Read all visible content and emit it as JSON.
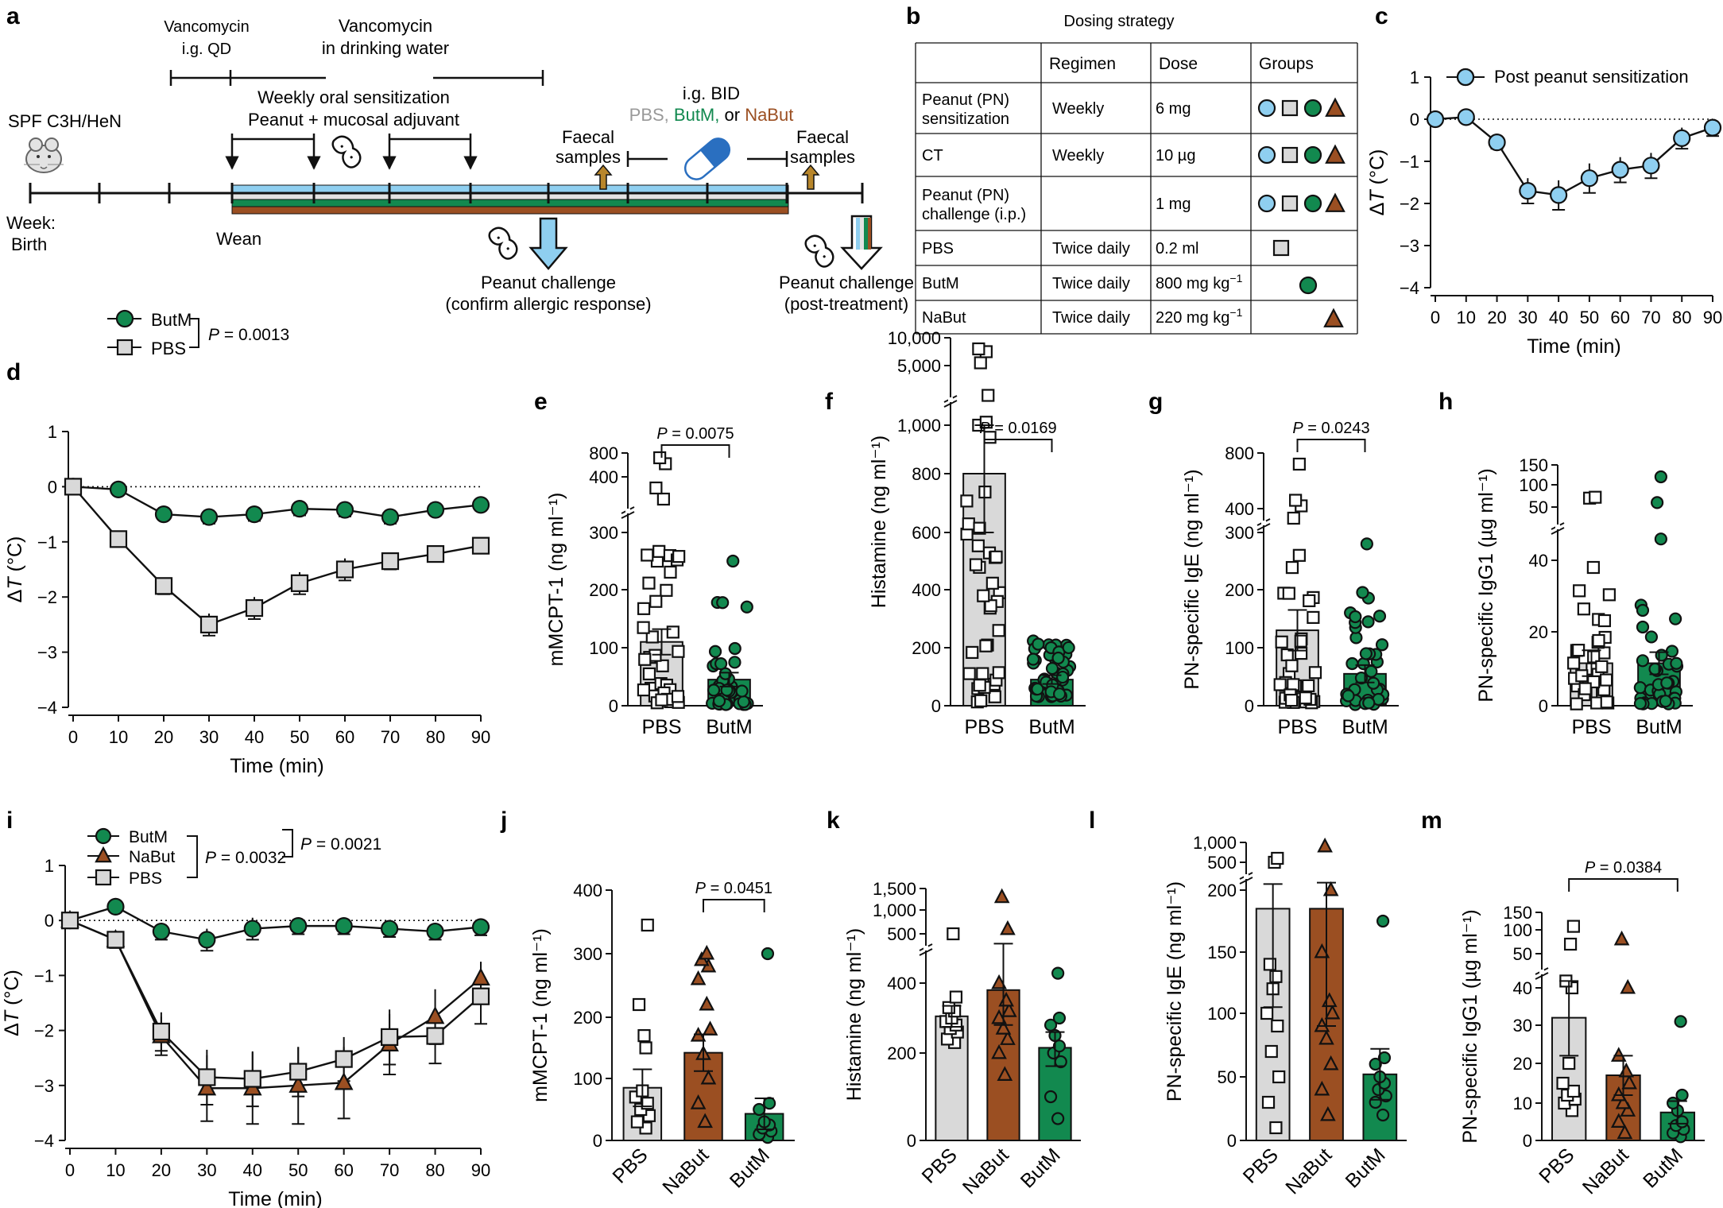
{
  "colors": {
    "pbs": "#d9d9d9",
    "butm": "#12894f",
    "nabut": "#9b4f22",
    "ct": "#8fcff0",
    "capsule": "#2a6fc0",
    "arrow": "#b8862b"
  },
  "panel_letters": [
    "a",
    "b",
    "c",
    "d",
    "e",
    "f",
    "g",
    "h",
    "i",
    "j",
    "k",
    "l",
    "m"
  ],
  "icons": [
    "mouse-icon",
    "peanut-icon",
    "capsule-icon",
    "faecal-arrow-icon",
    "challenge-arrow-icon"
  ],
  "panel_a": {
    "mouse_label": "SPF C3H/HeN",
    "week_label_1": "Week:",
    "week_label_2": "Birth",
    "wean_label": "Wean",
    "vanco_qd_1": "Vancomycin",
    "vanco_qd_2": "i.g. QD",
    "vanco_water_1": "Vancomycin",
    "vanco_water_2": "in drinking water",
    "sens_1": "Weekly oral sensitization",
    "sens_2": "Peanut + mucosal adjuvant",
    "bid_title": "i.g. BID",
    "bid_pbs": "PBS,",
    "bid_butm": "ButM,",
    "bid_or": "or",
    "bid_nabut": "NaBut",
    "faecal1_1": "Faecal",
    "faecal1_2": "samples",
    "faecal2_1": "Faecal",
    "faecal2_2": "samples",
    "challenge1_1": "Peanut challenge",
    "challenge1_2": "(confirm allergic response)",
    "challenge2_1": "Peanut challenge",
    "challenge2_2": "(post-treatment)"
  },
  "panel_b": {
    "title": "Dosing strategy",
    "headers": [
      "",
      "Regimen",
      "Dose",
      "Groups"
    ],
    "rows": [
      {
        "name1": "Peanut (PN)",
        "name2": "sensitization",
        "regimen": "Weekly",
        "dose": "6 mg",
        "groups": [
          "ct",
          "pbs",
          "butm",
          "nabut"
        ]
      },
      {
        "name1": "CT",
        "name2": "",
        "regimen": "Weekly",
        "dose": "10 µg",
        "groups": [
          "ct",
          "pbs",
          "butm",
          "nabut"
        ]
      },
      {
        "name1": "Peanut (PN)",
        "name2": "challenge (i.p.)",
        "regimen": "",
        "dose": "1 mg",
        "groups": [
          "ct",
          "pbs",
          "butm",
          "nabut"
        ]
      },
      {
        "name1": "PBS",
        "name2": "",
        "regimen": "Twice daily",
        "dose": "0.2 ml",
        "groups": [
          "pbs"
        ]
      },
      {
        "name1": "ButM",
        "name2": "",
        "regimen": "Twice daily",
        "dose": "800 mg kg",
        "groups": [
          "butm"
        ]
      },
      {
        "name1": "NaBut",
        "name2": "",
        "regimen": "Twice daily",
        "dose": "220 mg kg",
        "groups": [
          "nabut"
        ]
      }
    ],
    "dose_superscript": "−1"
  },
  "chart_data": [
    {
      "id": "c",
      "type": "line",
      "title": "",
      "xlabel": "Time (min)",
      "ylabel": "ΔT (°C)",
      "ylim": [
        -4,
        1
      ],
      "xlim": [
        0,
        90
      ],
      "xticks": [
        0,
        10,
        20,
        30,
        40,
        50,
        60,
        70,
        80,
        90
      ],
      "yticks": [
        1,
        0,
        -1,
        -2,
        -3,
        -4
      ],
      "yticklabels": [
        "1",
        "0",
        "−1",
        "−2",
        "−3",
        "−4"
      ],
      "series": [
        {
          "name": "Post peanut sensitization",
          "marker": "circle",
          "color": "ct",
          "x": [
            0,
            10,
            20,
            30,
            40,
            50,
            60,
            70,
            80,
            90
          ],
          "y": [
            0,
            0.05,
            -0.55,
            -1.7,
            -1.8,
            -1.4,
            -1.2,
            -1.1,
            -0.45,
            -0.2
          ],
          "err": [
            0,
            0.05,
            0.15,
            0.3,
            0.35,
            0.35,
            0.3,
            0.3,
            0.25,
            0.2
          ]
        }
      ]
    },
    {
      "id": "d",
      "type": "line",
      "xlabel": "Time (min)",
      "ylabel": "ΔT (°C)",
      "ylim": [
        -4,
        1
      ],
      "xlim": [
        0,
        90
      ],
      "xticks": [
        0,
        10,
        20,
        30,
        40,
        50,
        60,
        70,
        80,
        90
      ],
      "yticks": [
        1,
        0,
        -1,
        -2,
        -3,
        -4
      ],
      "yticklabels": [
        "1",
        "0",
        "−1",
        "−2",
        "−3",
        "−4"
      ],
      "p_label": "P",
      "p_value": " = 0.0013",
      "series": [
        {
          "name": "ButM",
          "marker": "circle",
          "color": "butm",
          "x": [
            0,
            10,
            20,
            30,
            40,
            50,
            60,
            70,
            80,
            90
          ],
          "y": [
            0,
            -0.05,
            -0.5,
            -0.55,
            -0.5,
            -0.4,
            -0.42,
            -0.55,
            -0.42,
            -0.33
          ],
          "err": [
            0,
            0.05,
            0.1,
            0.12,
            0.12,
            0.12,
            0.12,
            0.12,
            0.1,
            0.1
          ]
        },
        {
          "name": "PBS",
          "marker": "square",
          "color": "pbs",
          "x": [
            0,
            10,
            20,
            30,
            40,
            50,
            60,
            70,
            80,
            90
          ],
          "y": [
            0,
            -0.95,
            -1.8,
            -2.5,
            -2.2,
            -1.75,
            -1.5,
            -1.35,
            -1.22,
            -1.07
          ],
          "err": [
            0,
            0.1,
            0.15,
            0.2,
            0.2,
            0.2,
            0.2,
            0.15,
            0.12,
            0.1
          ]
        }
      ]
    },
    {
      "id": "i",
      "type": "line",
      "xlabel": "Time (min)",
      "ylabel": "ΔT (°C)",
      "ylim": [
        -4,
        1
      ],
      "xlim": [
        0,
        90
      ],
      "xticks": [
        0,
        10,
        20,
        30,
        40,
        50,
        60,
        70,
        80,
        90
      ],
      "yticks": [
        1,
        0,
        -1,
        -2,
        -3,
        -4
      ],
      "yticklabels": [
        "1",
        "0",
        "−1",
        "−2",
        "−3",
        "−4"
      ],
      "p1_label": "P",
      "p1_value": " = 0.0032",
      "p2_label": "P",
      "p2_value": " = 0.0021",
      "series": [
        {
          "name": "ButM",
          "marker": "circle",
          "color": "butm",
          "x": [
            0,
            10,
            20,
            30,
            40,
            50,
            60,
            70,
            80,
            90
          ],
          "y": [
            0,
            0.25,
            -0.2,
            -0.35,
            -0.15,
            -0.1,
            -0.1,
            -0.15,
            -0.2,
            -0.12
          ],
          "err": [
            0,
            0.05,
            0.15,
            0.2,
            0.2,
            0.15,
            0.15,
            0.15,
            0.15,
            0.15
          ]
        },
        {
          "name": "NaBut",
          "marker": "triangle",
          "color": "nabut",
          "x": [
            0,
            10,
            20,
            30,
            40,
            50,
            60,
            70,
            80,
            90
          ],
          "y": [
            0,
            -0.35,
            -2.1,
            -3.05,
            -3.05,
            -3.0,
            -2.95,
            -2.25,
            -1.75,
            -1.05
          ],
          "err": [
            0,
            0.15,
            0.35,
            0.6,
            0.65,
            0.7,
            0.65,
            0.55,
            0.5,
            0.3
          ]
        },
        {
          "name": "PBS",
          "marker": "square",
          "color": "pbs",
          "x": [
            0,
            10,
            20,
            30,
            40,
            50,
            60,
            70,
            80,
            90
          ],
          "y": [
            0,
            -0.35,
            -2.02,
            -2.85,
            -2.88,
            -2.75,
            -2.52,
            -2.12,
            -2.1,
            -1.38
          ],
          "err": [
            0,
            0.15,
            0.35,
            0.5,
            0.5,
            0.45,
            0.4,
            0.5,
            0.5,
            0.5
          ]
        }
      ]
    },
    {
      "id": "e",
      "type": "bar",
      "ylabel": "mMCPT-1 (ng ml⁻¹)",
      "categories": [
        "PBS",
        "ButM"
      ],
      "values": [
        110,
        45
      ],
      "err": [
        22,
        12
      ],
      "p_label": "P",
      "p_value": " = 0.0075",
      "yticks": [
        "0",
        "100",
        "200",
        "300",
        "400",
        "800"
      ]
    },
    {
      "id": "f",
      "type": "bar",
      "ylabel": "Histamine (ng ml⁻¹)",
      "categories": [
        "PBS",
        "ButM"
      ],
      "values": [
        800,
        90
      ],
      "err": [
        200,
        15
      ],
      "p_label": "P",
      "p_value": " = 0.0169",
      "yticks": [
        "0",
        "200",
        "400",
        "600",
        "800",
        "1,000",
        "5,000",
        "10,000"
      ]
    },
    {
      "id": "g",
      "type": "bar",
      "ylabel": "PN-specific IgE (ng ml⁻¹)",
      "categories": [
        "PBS",
        "ButM"
      ],
      "values": [
        130,
        55
      ],
      "err": [
        35,
        15
      ],
      "p_label": "P",
      "p_value": " = 0.0243",
      "yticks": [
        "0",
        "100",
        "200",
        "300",
        "400",
        "800"
      ]
    },
    {
      "id": "h",
      "type": "bar",
      "ylabel": "PN-specific IgG1 (µg ml⁻¹)",
      "categories": [
        "PBS",
        "ButM"
      ],
      "values": [
        11.5,
        11.5
      ],
      "err": [
        3.5,
        3
      ],
      "yticks": [
        "0",
        "20",
        "40",
        "50",
        "100",
        "150"
      ]
    },
    {
      "id": "j",
      "type": "bar",
      "ylabel": "mMCPT-1 (ng ml⁻¹)",
      "categories": [
        "PBS",
        "NaBut",
        "ButM"
      ],
      "values": [
        85,
        142,
        43
      ],
      "err": [
        30,
        30,
        25
      ],
      "p_label": "P",
      "p_value": " = 0.0451",
      "yticks": [
        "0",
        "100",
        "200",
        "300",
        "400"
      ]
    },
    {
      "id": "k",
      "type": "bar",
      "ylabel": "Histamine (ng ml⁻¹)",
      "categories": [
        "PBS",
        "NaBut",
        "ButM"
      ],
      "values": [
        305,
        380,
        215
      ],
      "err": [
        30,
        100,
        45
      ],
      "yticks": [
        "0",
        "200",
        "400",
        "500",
        "1,000",
        "1,500"
      ]
    },
    {
      "id": "l",
      "type": "bar",
      "ylabel": "PN-specific IgE (ng ml⁻¹)",
      "categories": [
        "PBS",
        "NaBut",
        "ButM"
      ],
      "values": [
        185,
        185,
        52
      ],
      "err": [
        80,
        95,
        20
      ],
      "yticks": [
        "0",
        "50",
        "100",
        "150",
        "200",
        "500",
        "1,000"
      ]
    },
    {
      "id": "m",
      "type": "bar",
      "ylabel": "PN-specific IgG1 (µg ml⁻¹)",
      "categories": [
        "PBS",
        "NaBut",
        "ButM"
      ],
      "values": [
        32,
        17,
        7.5
      ],
      "err": [
        10,
        5,
        3
      ],
      "p_label": "P",
      "p_value": " = 0.0384",
      "yticks": [
        "0",
        "10",
        "20",
        "30",
        "40",
        "50",
        "100",
        "150"
      ]
    }
  ]
}
